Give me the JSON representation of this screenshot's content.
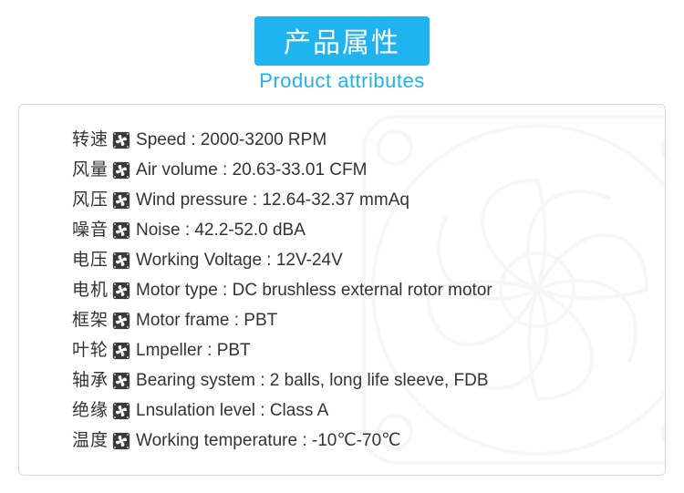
{
  "title_cn": "产品属性",
  "title_en": "Product attributes",
  "colors": {
    "accent": "#1fb3ef",
    "text": "#333333",
    "border": "#d9d9d9",
    "icon_fill": "#3a3a3a",
    "bg_fan_stroke": "#b8b8b8"
  },
  "rows": [
    {
      "cn": "转速",
      "en": "Speed : 2000-3200 RPM"
    },
    {
      "cn": "风量",
      "en": "Air volume : 20.63-33.01 CFM"
    },
    {
      "cn": "风压",
      "en": "Wind pressure : 12.64-32.37 mmAq"
    },
    {
      "cn": "噪音",
      "en": "Noise : 42.2-52.0 dBA"
    },
    {
      "cn": "电压",
      "en": "Working Voltage :  12V-24V"
    },
    {
      "cn": "电机",
      "en": "Motor type : DC brushless external rotor motor"
    },
    {
      "cn": "框架",
      "en": "Motor frame : PBT"
    },
    {
      "cn": "叶轮",
      "en": "Lmpeller : PBT"
    },
    {
      "cn": "轴承",
      "en": "Bearing system : 2 balls, long life sleeve, FDB"
    },
    {
      "cn": "绝缘",
      "en": "Lnsulation  level : Class A"
    },
    {
      "cn": "温度",
      "en": "Working temperature : -10℃-70℃"
    }
  ]
}
